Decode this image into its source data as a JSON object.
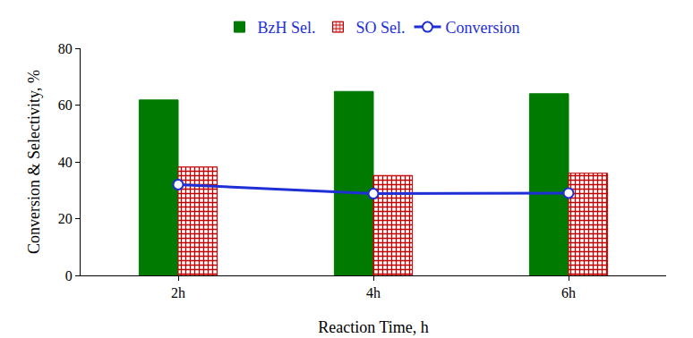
{
  "chart_data": {
    "type": "bar",
    "x_label": "Reaction Time, h",
    "y_label": "Conversion & Selectivity, %",
    "categories": [
      "2h",
      "4h",
      "6h"
    ],
    "series": [
      {
        "name": "BzH Sel.",
        "type": "bar",
        "color": "#007a00",
        "values": [
          61.8,
          64.8,
          64.0
        ]
      },
      {
        "name": "SO Sel.",
        "type": "bar",
        "color": "#c00000",
        "marker": "hatch",
        "values": [
          38.2,
          35.2,
          36.0
        ]
      },
      {
        "name": "Conversion",
        "type": "line",
        "color": "#1f2fd6",
        "marker": "circle",
        "values": [
          32.0,
          28.8,
          29.0
        ]
      }
    ],
    "ylim": [
      0,
      80
    ],
    "yticks": [
      0,
      20,
      40,
      60,
      80
    ],
    "grid": false,
    "legend": "top"
  }
}
